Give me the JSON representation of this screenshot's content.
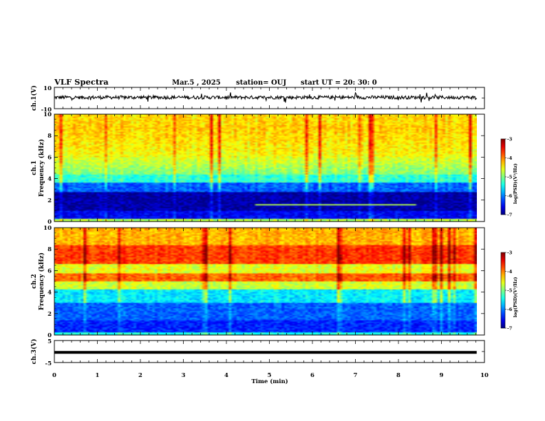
{
  "chart_data": {
    "type": "heatmap",
    "title": "VLF Spectra",
    "header": {
      "date": "Mar.5 , 2025",
      "station": "station= OUJ",
      "start": "start UT = 20: 30: 0"
    },
    "xlabel": "Time (min)",
    "xlim": [
      0,
      10
    ],
    "xticks": [
      0,
      1,
      2,
      3,
      4,
      5,
      6,
      7,
      8,
      9,
      10
    ],
    "panels": [
      {
        "name": "ch1-waveform",
        "type": "line",
        "ylabel": "ch.1(V)",
        "ylim": [
          -10,
          10
        ],
        "ytick_labels": [
          "10",
          "-10"
        ],
        "end_minute": 9.82
      },
      {
        "name": "ch1-spectrogram",
        "type": "heatmap",
        "ylabel_lines": [
          "ch.1",
          "Frequency (kHz)"
        ],
        "ylim": [
          0,
          10
        ],
        "yticks": [
          0,
          2,
          4,
          6,
          8,
          10
        ],
        "end_minute": 9.82,
        "colorbar": {
          "label": "log(PSD)(V²/Hz)",
          "ticks": [
            -3,
            -4,
            -5,
            -6,
            -7
          ],
          "range": [
            -7,
            -3
          ]
        }
      },
      {
        "name": "ch2-spectrogram",
        "type": "heatmap",
        "ylabel_lines": [
          "ch.2",
          "Frequency (kHz)"
        ],
        "ylim": [
          0,
          10
        ],
        "yticks": [
          0,
          2,
          4,
          6,
          8,
          10
        ],
        "end_minute": 9.82,
        "colorbar": {
          "label": "log(PSD)(V²/Hz)",
          "ticks": [
            -3,
            -4,
            -5,
            -6,
            -7
          ],
          "range": [
            -7,
            -3
          ]
        }
      },
      {
        "name": "ch3-waveform",
        "type": "line",
        "ylabel": "ch.3(V)",
        "ylim": [
          -5,
          5
        ],
        "ytick_labels": [
          "5",
          "-5"
        ],
        "level": -0.4,
        "end_minute": 9.82
      }
    ]
  }
}
